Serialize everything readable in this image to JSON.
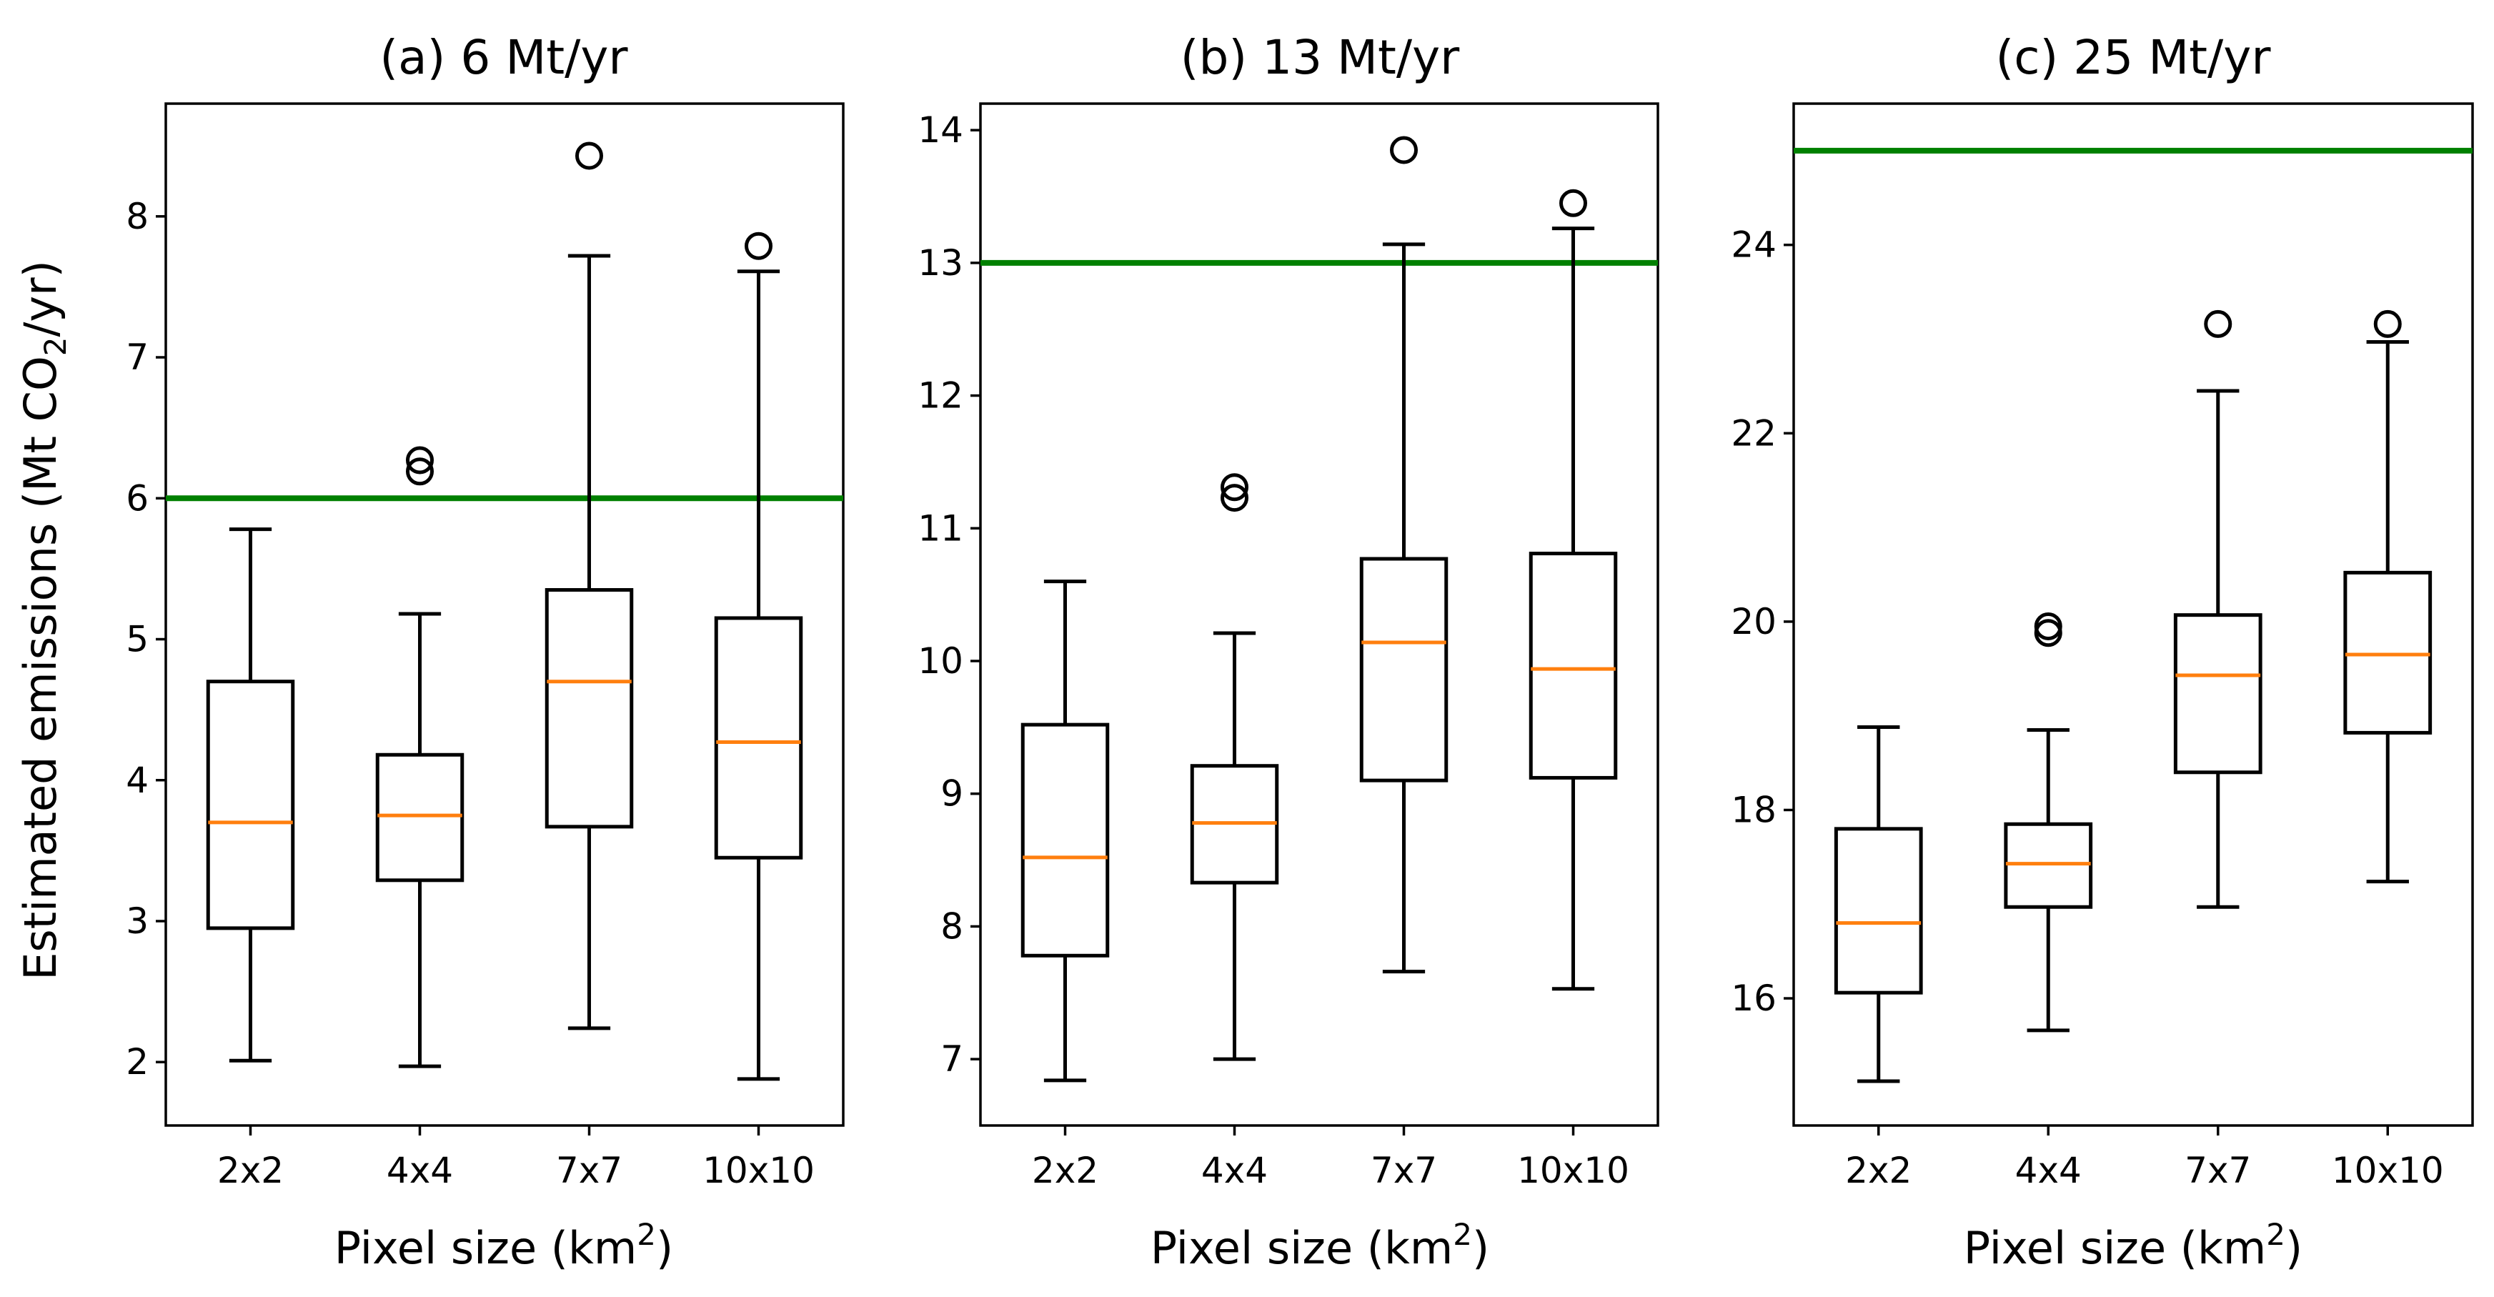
{
  "colors": {
    "box": "#000000",
    "median": "#ff7f0e",
    "reference_line": "#008000",
    "background": "#ffffff"
  },
  "figure": {
    "ylabel_main": "Estimated emissions (Mt CO",
    "ylabel_sub": "2",
    "ylabel_end": "/yr)",
    "xlabel_main": "Pixel size (km",
    "xlabel_sup": "2",
    "xlabel_end": ")"
  },
  "chart_data": [
    {
      "type": "box",
      "title": "(a) 6 Mt/yr",
      "categories": [
        "2x2",
        "4x4",
        "7x7",
        "10x10"
      ],
      "reference_value": 6,
      "ylim": [
        1.55,
        8.8
      ],
      "yticks": [
        2,
        3,
        4,
        5,
        6,
        7,
        8
      ],
      "boxes": [
        {
          "whisker_low": 2.01,
          "q1": 2.95,
          "median": 3.7,
          "q3": 4.7,
          "whisker_high": 5.78,
          "outliers": []
        },
        {
          "whisker_low": 1.97,
          "q1": 3.29,
          "median": 3.75,
          "q3": 4.18,
          "whisker_high": 5.18,
          "outliers": [
            6.19,
            6.27
          ]
        },
        {
          "whisker_low": 2.24,
          "q1": 3.67,
          "median": 4.7,
          "q3": 5.35,
          "whisker_high": 7.72,
          "outliers": [
            8.43
          ]
        },
        {
          "whisker_low": 1.88,
          "q1": 3.45,
          "median": 4.27,
          "q3": 5.15,
          "whisker_high": 7.61,
          "outliers": [
            7.79
          ]
        }
      ]
    },
    {
      "type": "box",
      "title": "(b) 13 Mt/yr",
      "categories": [
        "2x2",
        "4x4",
        "7x7",
        "10x10"
      ],
      "reference_value": 13,
      "ylim": [
        6.5,
        14.2
      ],
      "yticks": [
        7,
        8,
        9,
        10,
        11,
        12,
        13,
        14
      ],
      "boxes": [
        {
          "whisker_low": 6.84,
          "q1": 7.78,
          "median": 8.52,
          "q3": 9.52,
          "whisker_high": 10.6,
          "outliers": []
        },
        {
          "whisker_low": 7.0,
          "q1": 8.33,
          "median": 8.78,
          "q3": 9.21,
          "whisker_high": 10.21,
          "outliers": [
            11.23,
            11.31
          ]
        },
        {
          "whisker_low": 7.66,
          "q1": 9.1,
          "median": 10.14,
          "q3": 10.77,
          "whisker_high": 13.14,
          "outliers": [
            13.85
          ]
        },
        {
          "whisker_low": 7.53,
          "q1": 9.12,
          "median": 9.94,
          "q3": 10.81,
          "whisker_high": 13.26,
          "outliers": [
            13.45
          ]
        }
      ]
    },
    {
      "type": "box",
      "title": "(c) 25 Mt/yr",
      "categories": [
        "2x2",
        "4x4",
        "7x7",
        "10x10"
      ],
      "reference_value": 25,
      "ylim": [
        14.65,
        25.5
      ],
      "yticks": [
        16,
        18,
        20,
        22,
        24
      ],
      "boxes": [
        {
          "whisker_low": 15.12,
          "q1": 16.06,
          "median": 16.8,
          "q3": 17.8,
          "whisker_high": 18.88,
          "outliers": []
        },
        {
          "whisker_low": 15.66,
          "q1": 16.97,
          "median": 17.43,
          "q3": 17.85,
          "whisker_high": 18.85,
          "outliers": [
            19.88,
            19.95
          ]
        },
        {
          "whisker_low": 16.97,
          "q1": 18.4,
          "median": 19.43,
          "q3": 20.07,
          "whisker_high": 22.45,
          "outliers": [
            23.16
          ]
        },
        {
          "whisker_low": 17.24,
          "q1": 18.82,
          "median": 19.65,
          "q3": 20.52,
          "whisker_high": 22.97,
          "outliers": [
            23.16
          ]
        }
      ]
    }
  ]
}
